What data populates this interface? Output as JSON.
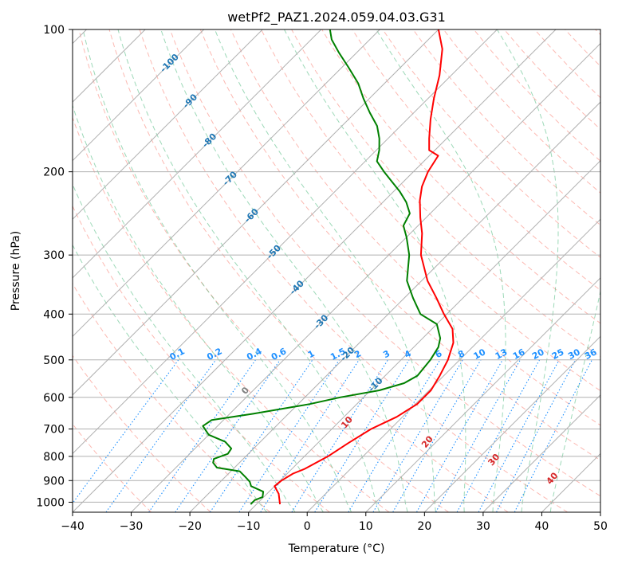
{
  "chart_data": {
    "type": "line",
    "title": "wetPf2_PAZ1.2024.059.04.03.G31",
    "xlabel": "Temperature (°C)",
    "ylabel": "Pressure (hPa)",
    "xlim": [
      -40,
      50
    ],
    "ylim": [
      1050,
      100
    ],
    "y_scale": "log",
    "grid": true,
    "x_ticks": [
      "−40",
      "−30",
      "−20",
      "−10",
      "0",
      "10",
      "20",
      "30",
      "40",
      "50"
    ],
    "y_ticks": [
      "100",
      "200",
      "300",
      "400",
      "500",
      "600",
      "700",
      "800",
      "900",
      "1000"
    ],
    "skew_degrees": 45,
    "colors": {
      "temperature": "#ff0000",
      "dewpoint": "#008000",
      "dry_adiabats": "#fa8072",
      "moist_adiabats": "#3cb371",
      "mixing_ratio": "#1e90ff",
      "isotherm_labels": "#1f77b4",
      "wetbulb_labels": "#d62728"
    },
    "series": [
      {
        "role": "temperature",
        "points": [
          {
            "p": 1010,
            "t": -6.0
          },
          {
            "p": 960,
            "t": -8.0
          },
          {
            "p": 925,
            "t": -10.0
          },
          {
            "p": 900,
            "t": -9.8
          },
          {
            "p": 870,
            "t": -9.0
          },
          {
            "p": 850,
            "t": -7.8
          },
          {
            "p": 800,
            "t": -6.0
          },
          {
            "p": 750,
            "t": -4.8
          },
          {
            "p": 700,
            "t": -3.3
          },
          {
            "p": 660,
            "t": -1.0
          },
          {
            "p": 620,
            "t": 0.3
          },
          {
            "p": 580,
            "t": 0.3
          },
          {
            "p": 540,
            "t": -0.7
          },
          {
            "p": 500,
            "t": -2.0
          },
          {
            "p": 460,
            "t": -4.0
          },
          {
            "p": 430,
            "t": -6.5
          },
          {
            "p": 400,
            "t": -10.5
          },
          {
            "p": 370,
            "t": -14.5
          },
          {
            "p": 340,
            "t": -19.0
          },
          {
            "p": 300,
            "t": -24.5
          },
          {
            "p": 270,
            "t": -28.0
          },
          {
            "p": 250,
            "t": -31.0
          },
          {
            "p": 230,
            "t": -34.0
          },
          {
            "p": 215,
            "t": -36.0
          },
          {
            "p": 200,
            "t": -37.5
          },
          {
            "p": 185,
            "t": -38.5
          },
          {
            "p": 180,
            "t": -41.0
          },
          {
            "p": 170,
            "t": -43.0
          },
          {
            "p": 155,
            "t": -46.0
          },
          {
            "p": 140,
            "t": -49.0
          },
          {
            "p": 125,
            "t": -52.0
          },
          {
            "p": 110,
            "t": -56.0
          },
          {
            "p": 100,
            "t": -60.0
          }
        ]
      },
      {
        "role": "dewpoint",
        "points": [
          {
            "p": 1010,
            "t": -11.0
          },
          {
            "p": 990,
            "t": -11.0
          },
          {
            "p": 975,
            "t": -10.2
          },
          {
            "p": 950,
            "t": -11.0
          },
          {
            "p": 925,
            "t": -14.0
          },
          {
            "p": 905,
            "t": -15.0
          },
          {
            "p": 885,
            "t": -16.5
          },
          {
            "p": 860,
            "t": -18.5
          },
          {
            "p": 845,
            "t": -23.0
          },
          {
            "p": 825,
            "t": -24.5
          },
          {
            "p": 810,
            "t": -25.0
          },
          {
            "p": 790,
            "t": -23.5
          },
          {
            "p": 770,
            "t": -23.8
          },
          {
            "p": 745,
            "t": -26.0
          },
          {
            "p": 720,
            "t": -30.0
          },
          {
            "p": 690,
            "t": -32.5
          },
          {
            "p": 670,
            "t": -32.0
          },
          {
            "p": 650,
            "t": -26.0
          },
          {
            "p": 620,
            "t": -18.0
          },
          {
            "p": 600,
            "t": -14.0
          },
          {
            "p": 580,
            "t": -8.5
          },
          {
            "p": 560,
            "t": -5.5
          },
          {
            "p": 540,
            "t": -4.5
          },
          {
            "p": 500,
            "t": -5.0
          },
          {
            "p": 470,
            "t": -5.8
          },
          {
            "p": 450,
            "t": -7.0
          },
          {
            "p": 420,
            "t": -10.0
          },
          {
            "p": 400,
            "t": -14.5
          },
          {
            "p": 370,
            "t": -18.5
          },
          {
            "p": 340,
            "t": -22.5
          },
          {
            "p": 300,
            "t": -26.5
          },
          {
            "p": 275,
            "t": -30.0
          },
          {
            "p": 260,
            "t": -32.5
          },
          {
            "p": 245,
            "t": -33.5
          },
          {
            "p": 232,
            "t": -36.0
          },
          {
            "p": 220,
            "t": -39.0
          },
          {
            "p": 200,
            "t": -45.0
          },
          {
            "p": 190,
            "t": -48.0
          },
          {
            "p": 180,
            "t": -49.5
          },
          {
            "p": 170,
            "t": -51.5
          },
          {
            "p": 160,
            "t": -54.0
          },
          {
            "p": 150,
            "t": -57.5
          },
          {
            "p": 140,
            "t": -61.0
          },
          {
            "p": 130,
            "t": -64.5
          },
          {
            "p": 120,
            "t": -69.0
          },
          {
            "p": 112,
            "t": -73.0
          },
          {
            "p": 105,
            "t": -76.5
          },
          {
            "p": 100,
            "t": -78.5
          }
        ]
      }
    ],
    "isotherm_labels": [
      {
        "t": -100,
        "p": 118,
        "text": "-100"
      },
      {
        "t": -90,
        "p": 142,
        "text": "-90"
      },
      {
        "t": -80,
        "p": 172,
        "text": "-80"
      },
      {
        "t": -70,
        "p": 207,
        "text": "-70"
      },
      {
        "t": -60,
        "p": 248,
        "text": "-60"
      },
      {
        "t": -50,
        "p": 296,
        "text": "-50"
      },
      {
        "t": -40,
        "p": 352,
        "text": "-40"
      },
      {
        "t": -30,
        "p": 416,
        "text": "-30"
      },
      {
        "t": -20,
        "p": 487,
        "text": "-20"
      },
      {
        "t": -10,
        "p": 565,
        "text": "-10"
      }
    ],
    "mixing_ratio_labels": [
      "0.1",
      "0.2",
      "0.4",
      "0.6",
      "1",
      "1.5",
      "2",
      "3",
      "4",
      "6",
      "8",
      "10",
      "13",
      "16",
      "20",
      "25",
      "30",
      "36"
    ],
    "mixing_ratio_values": [
      0.1,
      0.2,
      0.4,
      0.6,
      1,
      1.5,
      2,
      3,
      4,
      6,
      8,
      10,
      13,
      16,
      20,
      25,
      30,
      36
    ],
    "wetbulb_labels": [
      {
        "t": 0,
        "text": "0",
        "color": "gray"
      },
      {
        "t": 10,
        "text": "10",
        "color": "red"
      },
      {
        "t": 20,
        "text": "20",
        "color": "red"
      },
      {
        "t": 30,
        "text": "30",
        "color": "red"
      },
      {
        "t": 40,
        "text": "40",
        "color": "red"
      }
    ]
  }
}
